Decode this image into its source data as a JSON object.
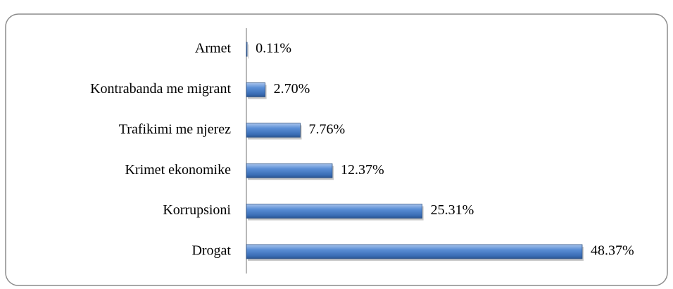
{
  "chart_data": {
    "type": "bar",
    "orientation": "horizontal",
    "categories": [
      "Armet",
      "Kontrabanda me migrant",
      "Trafikimi me njerez",
      "Krimet ekonomike",
      "Korrupsioni",
      "Drogat"
    ],
    "values": [
      0.11,
      2.7,
      7.76,
      12.37,
      25.31,
      48.37
    ],
    "value_labels": [
      "0.11%",
      "2.70%",
      "7.76%",
      "12.37%",
      "25.31%",
      "48.37%"
    ],
    "color": "#4f81bd"
  }
}
